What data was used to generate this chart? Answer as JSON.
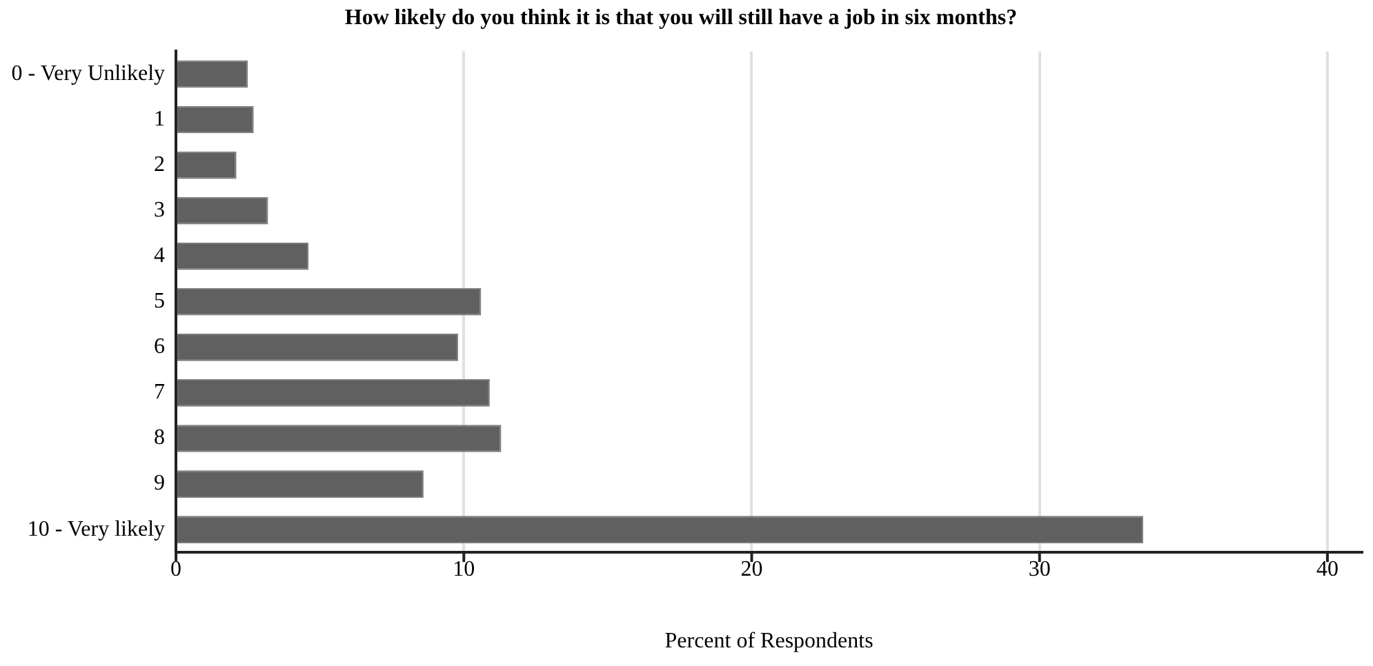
{
  "chart_data": {
    "type": "bar",
    "orientation": "horizontal",
    "title": "How likely do you think it is that you will still have a job in six months?",
    "xlabel": "Percent of Respondents",
    "categories": [
      "0 - Very Unlikely",
      "1",
      "2",
      "3",
      "4",
      "5",
      "6",
      "7",
      "8",
      "9",
      "10 - Very likely"
    ],
    "values": [
      2.5,
      2.7,
      2.1,
      3.2,
      4.6,
      10.6,
      9.8,
      10.9,
      11.3,
      8.6,
      33.6
    ],
    "color": "#606060",
    "xlim": [
      0,
      41.2
    ],
    "xticks": [
      0,
      10,
      20,
      30,
      40
    ],
    "grid": "x",
    "legend": false
  }
}
